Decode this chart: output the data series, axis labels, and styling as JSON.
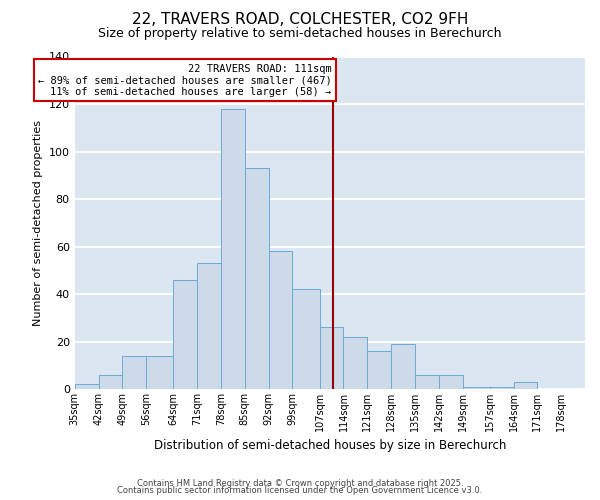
{
  "title": "22, TRAVERS ROAD, COLCHESTER, CO2 9FH",
  "subtitle": "Size of property relative to semi-detached houses in Berechurch",
  "xlabel": "Distribution of semi-detached houses by size in Berechurch",
  "ylabel": "Number of semi-detached properties",
  "bins": [
    35,
    42,
    49,
    56,
    64,
    71,
    78,
    85,
    92,
    99,
    107,
    114,
    121,
    128,
    135,
    142,
    149,
    157,
    164,
    171,
    178
  ],
  "counts": [
    2,
    6,
    14,
    14,
    46,
    53,
    118,
    93,
    58,
    42,
    26,
    22,
    16,
    19,
    6,
    6,
    1,
    1,
    3,
    0
  ],
  "bar_color": "#cddaea",
  "bar_edge_color": "#6aaad4",
  "vline_x": 111,
  "vline_color": "#990000",
  "annotation_text": "22 TRAVERS ROAD: 111sqm\n← 89% of semi-detached houses are smaller (467)\n11% of semi-detached houses are larger (58) →",
  "annotation_box_color": "#ffffff",
  "annotation_box_edge_color": "#cc0000",
  "ylim": [
    0,
    140
  ],
  "yticks": [
    0,
    20,
    40,
    60,
    80,
    100,
    120,
    140
  ],
  "background_color": "#dce6f1",
  "grid_color": "#ffffff",
  "footer_line1": "Contains HM Land Registry data © Crown copyright and database right 2025.",
  "footer_line2": "Contains public sector information licensed under the Open Government Licence v3.0."
}
